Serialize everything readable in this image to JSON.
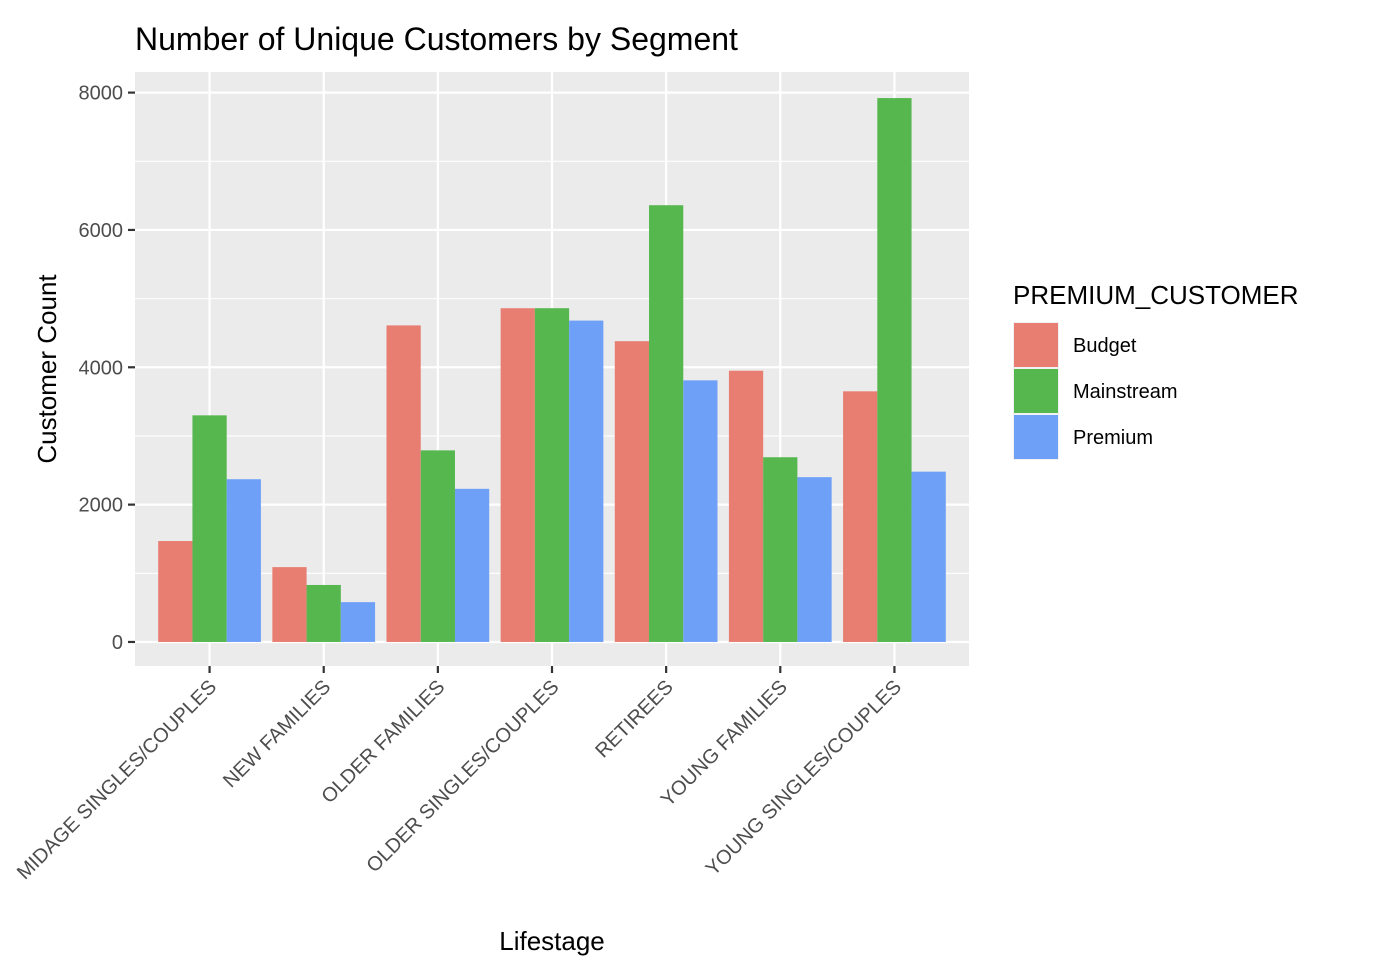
{
  "chart_data": {
    "type": "bar",
    "title": "Number of Unique Customers by Segment",
    "xlabel": "Lifestage",
    "ylabel": "Customer Count",
    "categories": [
      "MIDAGE SINGLES/COUPLES",
      "NEW FAMILIES",
      "OLDER FAMILIES",
      "OLDER SINGLES/COUPLES",
      "RETIREES",
      "YOUNG FAMILIES",
      "YOUNG SINGLES/COUPLES"
    ],
    "series": [
      {
        "name": "Budget",
        "color": "#F8766D",
        "values": [
          1470,
          1090,
          4610,
          4860,
          4380,
          3950,
          3650
        ]
      },
      {
        "name": "Mainstream",
        "color": "#7CAE00",
        "values": [
          3300,
          830,
          2790,
          4860,
          6360,
          2690,
          7920
        ]
      },
      {
        "name": "Premium",
        "color": "#619CFF",
        "values": [
          2370,
          580,
          2230,
          4680,
          3810,
          2400,
          2480
        ]
      }
    ],
    "yticks": [
      0,
      2000,
      4000,
      6000,
      8000
    ],
    "ylim": [
      -350,
      8300
    ],
    "legend": {
      "title": "PREMIUM_CUSTOMER",
      "placement": "right"
    },
    "grid": true,
    "bar_colors_rendered": {
      "Budget": "#E87E72",
      "Mainstream": "#55B74E",
      "Premium": "#6FA0F8"
    },
    "panel_background": "#EBEBEB",
    "grid_color": "#FFFFFF"
  }
}
